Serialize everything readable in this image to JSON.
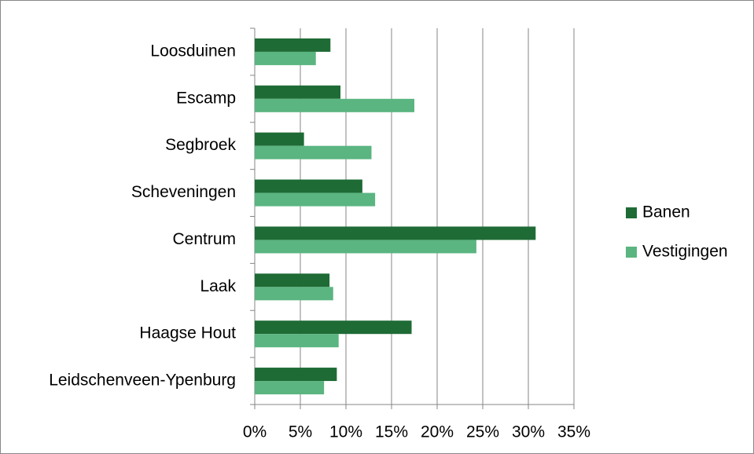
{
  "chart_data": {
    "type": "hbar",
    "categories": [
      "Loosduinen",
      "Escamp",
      "Segbroek",
      "Scheveningen",
      "Centrum",
      "Laak",
      "Haagse Hout",
      "Leidschenveen-Ypenburg"
    ],
    "series": [
      {
        "name": "Banen",
        "color": "#1e6b35",
        "values": [
          8.3,
          9.4,
          5.4,
          11.8,
          30.8,
          8.2,
          17.2,
          9.0
        ]
      },
      {
        "name": "Vestigingen",
        "color": "#5ab580",
        "values": [
          6.7,
          17.5,
          12.8,
          13.2,
          24.3,
          8.6,
          9.2,
          7.6
        ]
      }
    ],
    "xlim": [
      0,
      35
    ],
    "xticks": [
      {
        "value": 0,
        "label": "0%"
      },
      {
        "value": 5,
        "label": "5%"
      },
      {
        "value": 10,
        "label": "10%"
      },
      {
        "value": 15,
        "label": "15%"
      },
      {
        "value": 20,
        "label": "20%"
      },
      {
        "value": 25,
        "label": "25%"
      },
      {
        "value": 30,
        "label": "30%"
      },
      {
        "value": 35,
        "label": "35%"
      }
    ],
    "grid": true,
    "legend": "right"
  }
}
